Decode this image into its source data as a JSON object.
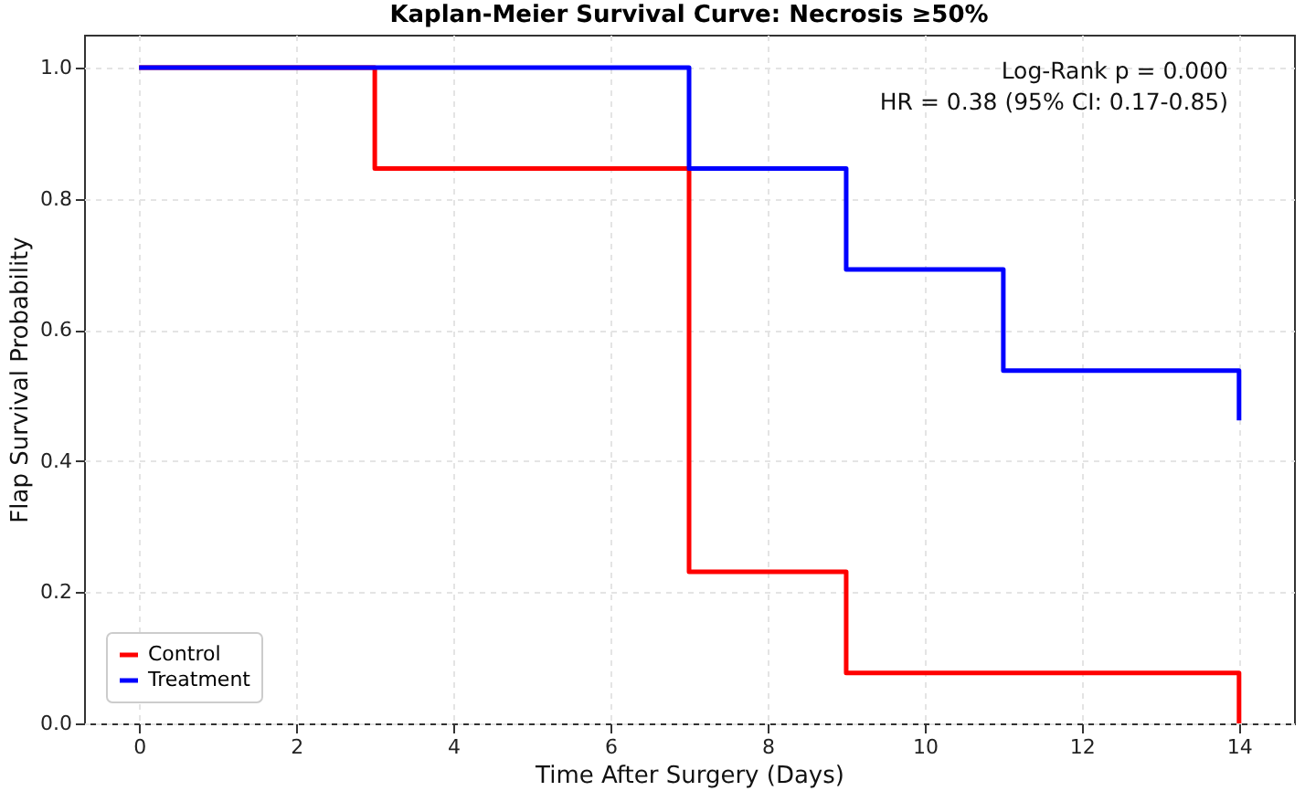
{
  "chart_data": {
    "type": "step",
    "title": "Kaplan-Meier Survival Curve: Necrosis ≥50%",
    "xlabel": "Time After Surgery (Days)",
    "ylabel": "Flap Survival Probability",
    "annotations": [
      "Log-Rank p = 0.000",
      "HR = 0.38 (95% CI: 0.17-0.85)"
    ],
    "series": [
      {
        "name": "Control",
        "color": "#ff0000",
        "x": [
          0,
          3,
          7,
          9,
          14
        ],
        "values": [
          1.0,
          0.846,
          0.231,
          0.077,
          0.0
        ]
      },
      {
        "name": "Treatment",
        "color": "#0000ff",
        "x": [
          0,
          7,
          9,
          11,
          14
        ],
        "values": [
          1.0,
          0.846,
          0.692,
          0.538,
          0.462
        ]
      }
    ],
    "xlim": [
      -0.7,
      14.7
    ],
    "ylim": [
      0,
      1.05
    ],
    "xticks": [
      0,
      2,
      4,
      6,
      8,
      10,
      12,
      14
    ],
    "yticks": [
      {
        "value": 0,
        "label": "0.0"
      },
      0.2,
      0.4,
      0.6,
      0.8,
      {
        "value": 1,
        "label": "1.0"
      }
    ],
    "grid": true,
    "legend": "bottom left",
    "line_style": "solid"
  }
}
